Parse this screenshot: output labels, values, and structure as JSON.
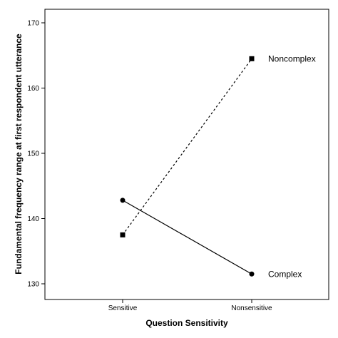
{
  "chart_data": {
    "type": "line",
    "xlabel": "Question Sensitivity",
    "ylabel": "Fundamental frequency range at first respondent utterance",
    "categories": [
      "Sensitive",
      "Nonsensitive"
    ],
    "ylim": [
      130,
      170
    ],
    "yticks": [
      130,
      140,
      150,
      160,
      170
    ],
    "grid": false,
    "legend": "none",
    "series": [
      {
        "name": "Noncomplex",
        "values": [
          137.5,
          164.5
        ],
        "line_style": "dotted",
        "marker": "square",
        "color": "#000000"
      },
      {
        "name": "Complex",
        "values": [
          142.8,
          131.5
        ],
        "line_style": "solid",
        "marker": "circle",
        "color": "#000000"
      }
    ]
  }
}
